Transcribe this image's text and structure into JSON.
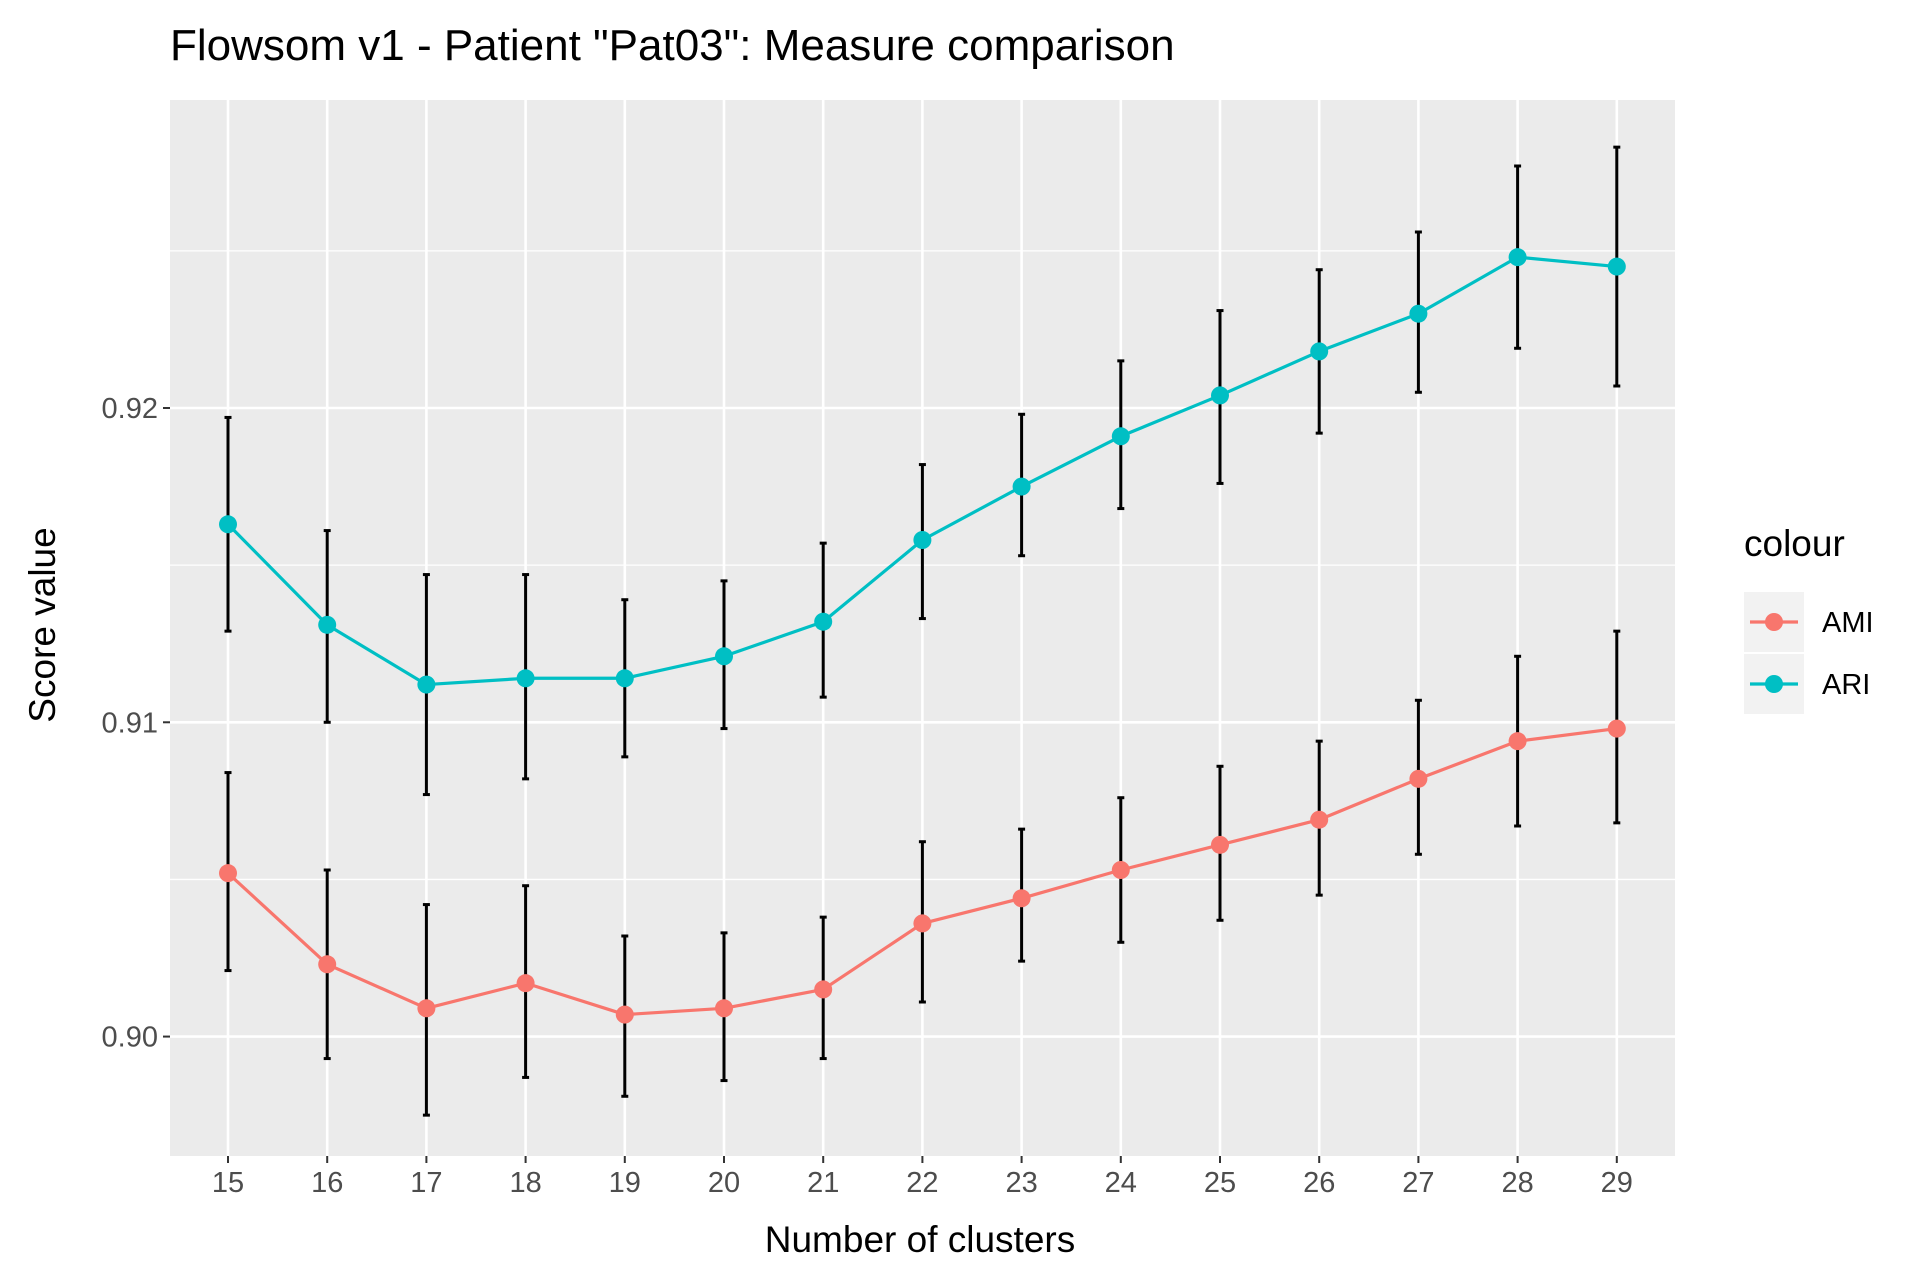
{
  "chart_data": {
    "type": "line",
    "title": "Flowsom v1 - Patient \"Pat03\": Measure comparison",
    "xlabel": "Number of clusters",
    "ylabel": "Score value",
    "categories": [
      "15",
      "16",
      "17",
      "18",
      "19",
      "20",
      "21",
      "22",
      "23",
      "24",
      "25",
      "26",
      "27",
      "28",
      "29"
    ],
    "y_ticks": [
      {
        "value": 0.9,
        "label": "0.90"
      },
      {
        "value": 0.91,
        "label": "0.91"
      },
      {
        "value": 0.92,
        "label": "0.92"
      }
    ],
    "ylim": [
      0.8962,
      0.9298
    ],
    "grid": true,
    "error_bars": true,
    "legend": {
      "title": "colour",
      "position": "right"
    },
    "series": [
      {
        "name": "AMI",
        "color": "#F8766D",
        "values": [
          0.9052,
          0.9023,
          0.9009,
          0.9017,
          0.9007,
          0.9009,
          0.9015,
          0.9036,
          0.9044,
          0.9053,
          0.9061,
          0.9069,
          0.9082,
          0.9094,
          0.9098
        ],
        "lower": [
          0.9021,
          0.8993,
          0.8975,
          0.8987,
          0.8981,
          0.8986,
          0.8993,
          0.9011,
          0.9024,
          0.903,
          0.9037,
          0.9045,
          0.9058,
          0.9067,
          0.9068
        ],
        "upper": [
          0.9084,
          0.9053,
          0.9042,
          0.9048,
          0.9032,
          0.9033,
          0.9038,
          0.9062,
          0.9066,
          0.9076,
          0.9086,
          0.9094,
          0.9107,
          0.9121,
          0.9129
        ]
      },
      {
        "name": "ARI",
        "color": "#00BFC4",
        "values": [
          0.9163,
          0.9131,
          0.9112,
          0.9114,
          0.9114,
          0.9121,
          0.9132,
          0.9158,
          0.9175,
          0.9191,
          0.9204,
          0.9218,
          0.923,
          0.9248,
          0.9245
        ],
        "lower": [
          0.9129,
          0.91,
          0.9077,
          0.9082,
          0.9089,
          0.9098,
          0.9108,
          0.9133,
          0.9153,
          0.9168,
          0.9176,
          0.9192,
          0.9205,
          0.9219,
          0.9207
        ],
        "upper": [
          0.9197,
          0.9161,
          0.9147,
          0.9147,
          0.9139,
          0.9145,
          0.9157,
          0.9182,
          0.9198,
          0.9215,
          0.9231,
          0.9244,
          0.9256,
          0.9277,
          0.9283
        ]
      }
    ]
  }
}
